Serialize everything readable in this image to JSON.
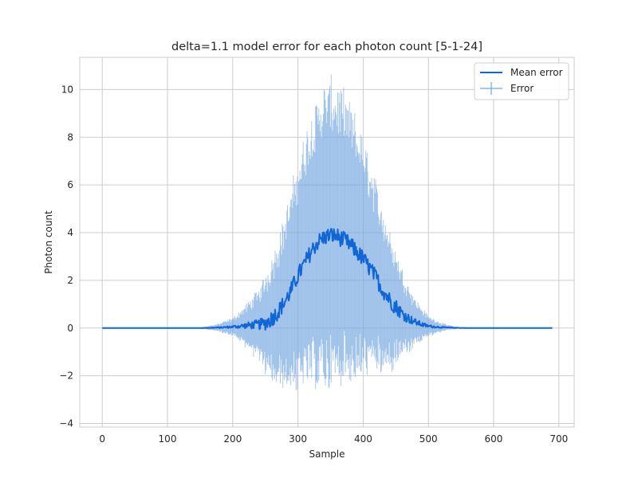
{
  "chart_data": {
    "type": "line",
    "title": "delta=1.1 model error for each photon count [5-1-24]",
    "xlabel": "Sample",
    "ylabel": "Photon count",
    "xlim": [
      -34.5,
      723.5
    ],
    "ylim": [
      -4.15,
      11.35
    ],
    "xticks": [
      0,
      100,
      200,
      300,
      400,
      500,
      600,
      700
    ],
    "yticks": [
      -4,
      -2,
      0,
      2,
      4,
      6,
      8,
      10
    ],
    "grid": true,
    "legend_position": "top-right",
    "x_range": [
      0,
      690
    ],
    "series": [
      {
        "name": "Mean error",
        "kind": "line",
        "color": "#1166d6",
        "x": [
          0,
          150,
          180,
          200,
          220,
          240,
          250,
          260,
          270,
          280,
          290,
          300,
          310,
          320,
          330,
          340,
          350,
          360,
          370,
          380,
          390,
          400,
          410,
          420,
          430,
          440,
          450,
          460,
          470,
          480,
          490,
          500,
          520,
          540,
          560,
          690
        ],
        "y": [
          0,
          0,
          0.02,
          0.05,
          0.1,
          0.15,
          0.2,
          0.4,
          0.7,
          1.1,
          1.6,
          2.2,
          2.7,
          3.2,
          3.6,
          3.8,
          3.9,
          3.85,
          3.7,
          3.5,
          3.2,
          2.9,
          2.5,
          2.1,
          1.6,
          1.2,
          0.9,
          0.6,
          0.4,
          0.25,
          0.15,
          0.08,
          0.03,
          0.01,
          0,
          0
        ]
      },
      {
        "name": "Error",
        "kind": "errorbar",
        "color": "#6fa3e0",
        "sigma_x": [
          0,
          140,
          160,
          180,
          200,
          220,
          240,
          260,
          280,
          300,
          320,
          340,
          350,
          360,
          380,
          400,
          420,
          440,
          460,
          480,
          500,
          520,
          540,
          560,
          690
        ],
        "sigma_y": [
          0,
          0,
          0.05,
          0.15,
          0.3,
          0.7,
          1.2,
          2.1,
          3.0,
          4.0,
          4.8,
          5.3,
          5.4,
          5.3,
          4.9,
          4.2,
          3.3,
          2.4,
          1.5,
          0.8,
          0.35,
          0.15,
          0.05,
          0,
          0
        ]
      }
    ]
  }
}
